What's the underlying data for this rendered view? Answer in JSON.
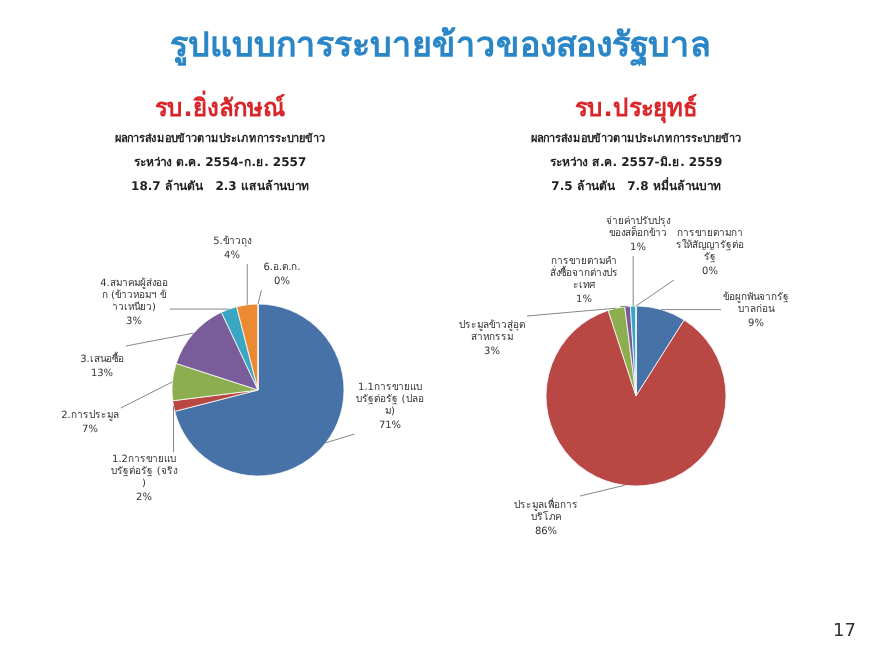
{
  "chart_data": [
    {
      "type": "other",
      "title": "รูปแบบการระบายข้าวของสองรัฐบาล",
      "annotations": [
        "17"
      ]
    },
    {
      "type": "pie",
      "title": "รบ.ยิ่งลักษณ์",
      "subtitle": "ผลการส่งมอบข้าวตามประเภทการระบายข้าว",
      "annotations": [
        "ระหว่าง ต.ค. 2554-ก.ย. 2557",
        "18.7 ล้านตัน   2.3 แสนล้านบาท"
      ],
      "categories": [
        "1.1การขายแบบรัฐต่อรัฐ (ปลอม)",
        "1.2การขายแบบรัฐต่อรัฐ (จริง)",
        "2.การประมูล",
        "3.เสนอซื้อ",
        "4.สมาคมผู้ส่งออก (ข้าวหอมฯ ข้าวเหนียว)",
        "5.ข้าวถุง",
        "6.อ.ต.ก."
      ],
      "values": [
        71,
        2,
        7,
        13,
        3,
        4,
        0
      ],
      "value_labels": [
        "71%",
        "2%",
        "7%",
        "13%",
        "3%",
        "4%",
        "0%"
      ],
      "colors": [
        "#4672a8",
        "#b94744",
        "#8cae4e",
        "#7a5c9a",
        "#3aa6c2",
        "#ec8a33",
        "#a3b9d8"
      ]
    },
    {
      "type": "pie",
      "title": "รบ.ประยุทธ์",
      "subtitle": "ผลการส่งมอบข้าวตามประเภทการระบายข้าว",
      "annotations": [
        "ระหว่าง ส.ค. 2557-มิ.ย. 2559",
        "7.5 ล้านตัน   7.8 หมื่นล้านบาท"
      ],
      "categories": [
        "ข้อผูกพันจากรัฐบาลก่อน",
        "ประมูลเพื่อการบริโภค",
        "ประมูลข้าวสู่อุตสาหกรรม",
        "การขายตามคำสั่งซื้อจากต่างประเทศ",
        "จ่ายค่าปรับปรุงของสต็อกข้าว",
        "การขายตามการให้สัญญารัฐต่อรัฐ"
      ],
      "values": [
        9,
        86,
        3,
        1,
        1,
        0
      ],
      "value_labels": [
        "9%",
        "86%",
        "3%",
        "1%",
        "1%",
        "0%"
      ],
      "colors": [
        "#4672a8",
        "#b94744",
        "#8cae4e",
        "#7a5c9a",
        "#3aa6c2",
        "#ec8a33"
      ]
    }
  ]
}
